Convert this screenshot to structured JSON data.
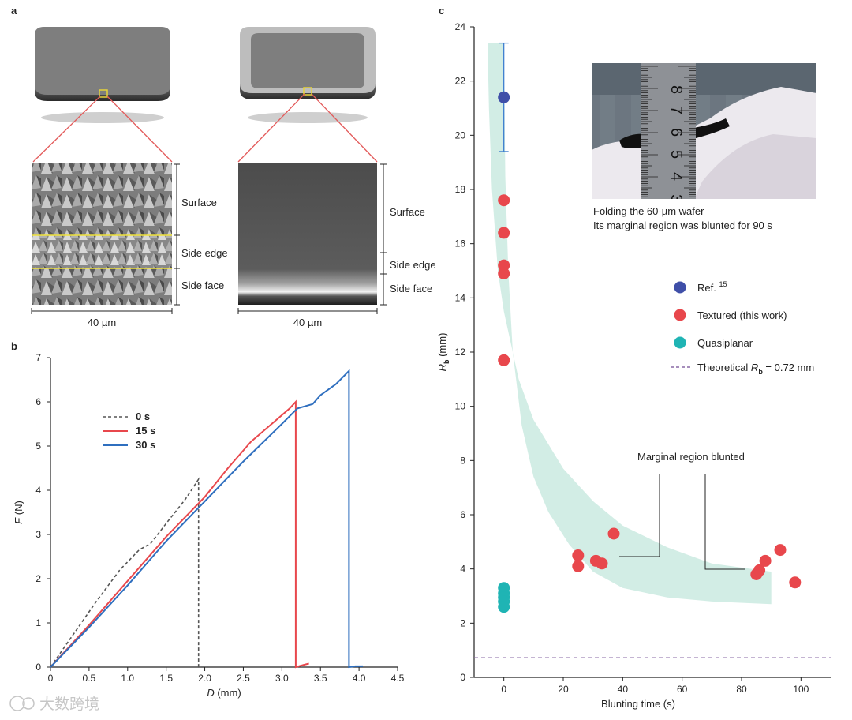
{
  "panels": {
    "a": {
      "label": "a",
      "left_labels": {
        "surface": "Surface",
        "side_edge": "Side edge",
        "side_face": "Side face",
        "scale": "40 µm"
      },
      "right_labels": {
        "surface": "Surface",
        "side_edge": "Side edge",
        "side_face": "Side face",
        "scale": "40 µm"
      }
    },
    "b": {
      "label": "b"
    },
    "c": {
      "label": "c",
      "photo_caption_1": "Folding the 60-µm wafer",
      "photo_caption_2": "Its marginal region was blunted for 90 s",
      "annotation": "Marginal region blunted",
      "legend_ref_sup": "15",
      "legend_theory_prefix": "Theoretical ",
      "legend_theory_sub": "b",
      "legend_theory_value": " = 0.72 mm"
    }
  },
  "watermark": "大数跨境",
  "colors": {
    "red": "#e8474c",
    "blue": "#2f6fbf",
    "navy": "#3f4fa8",
    "teal": "#1fb4b4",
    "band": "#cdebe2",
    "theory": "#8a6aa6",
    "dash": "#555555"
  },
  "chart_data": [
    {
      "type": "line",
      "panel": "b",
      "xlabel": "D (mm)",
      "ylabel": "F (N)",
      "xlim": [
        0,
        4.5
      ],
      "ylim": [
        0,
        7
      ],
      "xticks": [
        "0",
        "0.5",
        "1.0",
        "1.5",
        "2.0",
        "2.5",
        "3.0",
        "3.5",
        "4.0",
        "4.5"
      ],
      "yticks": [
        "0",
        "1",
        "2",
        "3",
        "4",
        "5",
        "6",
        "7"
      ],
      "legend_position": "upper-left",
      "series": [
        {
          "name": "0 s",
          "color": "#555555",
          "dashed": true,
          "points": [
            [
              0,
              0
            ],
            [
              0.3,
              0.75
            ],
            [
              0.6,
              1.5
            ],
            [
              0.9,
              2.2
            ],
            [
              1.15,
              2.65
            ],
            [
              1.3,
              2.8
            ],
            [
              1.5,
              3.25
            ],
            [
              1.75,
              3.8
            ],
            [
              1.92,
              4.25
            ],
            [
              1.92,
              0
            ],
            [
              1.97,
              0
            ],
            [
              2.05,
              0
            ]
          ]
        },
        {
          "name": "15 s",
          "color": "#e8474c",
          "dashed": false,
          "points": [
            [
              0,
              0
            ],
            [
              0.5,
              0.95
            ],
            [
              1.0,
              1.95
            ],
            [
              1.5,
              2.95
            ],
            [
              2.0,
              3.85
            ],
            [
              2.3,
              4.5
            ],
            [
              2.6,
              5.1
            ],
            [
              2.9,
              5.55
            ],
            [
              3.1,
              5.85
            ],
            [
              3.18,
              6.0
            ],
            [
              3.18,
              0
            ],
            [
              3.28,
              0.05
            ],
            [
              3.35,
              0.08
            ]
          ]
        },
        {
          "name": "30 s",
          "color": "#2f6fbf",
          "dashed": false,
          "points": [
            [
              0,
              0
            ],
            [
              0.5,
              0.9
            ],
            [
              1.0,
              1.85
            ],
            [
              1.5,
              2.85
            ],
            [
              2.0,
              3.75
            ],
            [
              2.5,
              4.65
            ],
            [
              3.0,
              5.5
            ],
            [
              3.2,
              5.85
            ],
            [
              3.4,
              5.95
            ],
            [
              3.5,
              6.15
            ],
            [
              3.7,
              6.4
            ],
            [
              3.87,
              6.7
            ],
            [
              3.87,
              0
            ],
            [
              3.95,
              0.02
            ],
            [
              4.05,
              0.02
            ]
          ]
        }
      ]
    },
    {
      "type": "scatter",
      "panel": "c",
      "xlabel": "Blunting time (s)",
      "ylabel_main": "R",
      "ylabel_sub": "b",
      "ylabel_unit": " (mm)",
      "xlim": [
        -10,
        110
      ],
      "ylim": [
        0,
        24
      ],
      "xticks": [
        0,
        20,
        40,
        60,
        80,
        100
      ],
      "yticks": [
        0,
        2,
        4,
        6,
        8,
        10,
        12,
        14,
        16,
        18,
        20,
        22,
        24
      ],
      "theoretical_rb": 0.72,
      "series": [
        {
          "name": "Ref.",
          "color": "#3f4fa8",
          "points": [
            [
              0,
              21.4
            ]
          ],
          "error": [
            [
              0,
              19.4,
              23.4
            ]
          ]
        },
        {
          "name": "Textured (this work)",
          "color": "#e8474c",
          "points": [
            [
              0,
              17.6
            ],
            [
              0,
              16.4
            ],
            [
              0,
              15.2
            ],
            [
              0,
              14.9
            ],
            [
              0,
              11.7
            ],
            [
              25,
              4.5
            ],
            [
              25,
              4.1
            ],
            [
              31,
              4.3
            ],
            [
              33,
              4.2
            ],
            [
              37,
              5.3
            ],
            [
              85,
              3.8
            ],
            [
              86,
              3.95
            ],
            [
              88,
              4.3
            ],
            [
              93,
              4.7
            ],
            [
              98,
              3.5
            ]
          ]
        },
        {
          "name": "Quasiplanar",
          "color": "#1fb4b4",
          "points": [
            [
              0,
              3.3
            ],
            [
              0,
              3.1
            ],
            [
              0,
              2.95
            ],
            [
              0,
              2.8
            ],
            [
              0,
              2.6
            ]
          ]
        }
      ],
      "legend_position": "right",
      "legend_theory_label": "Theoretical Rb = 0.72 mm"
    }
  ]
}
